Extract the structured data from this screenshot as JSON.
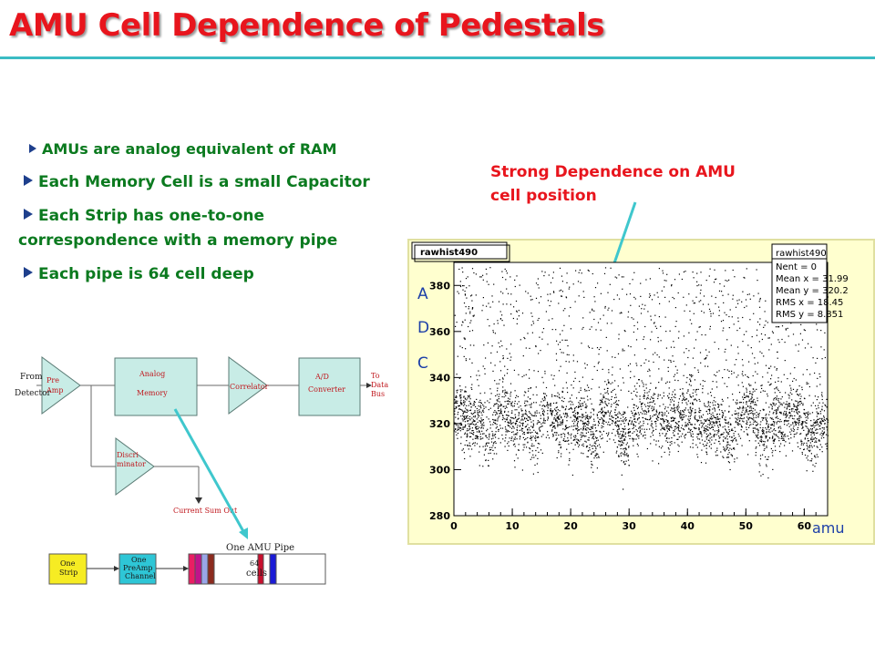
{
  "title": "AMU Cell Dependence of Pedestals",
  "bullets": [
    "AMUs are analog equivalent of RAM",
    "Each Memory Cell is a small Capacitor",
    "Each Strip has one-to-one",
    "correspondence with a memory pipe",
    "Each pipe is 64 cell deep"
  ],
  "annotation": {
    "line1": "Strong Dependence on AMU",
    "line2": "cell position"
  },
  "diagram": {
    "from_detector": [
      "From",
      "Detector"
    ],
    "preamp": [
      "Pre",
      "Amp"
    ],
    "analog_memory": [
      "Analog",
      "Memory"
    ],
    "correlator": "Correlator",
    "adc": [
      "A/D",
      "Converter"
    ],
    "to_data_bus": [
      "To",
      "Data",
      "Bus"
    ],
    "discriminator": [
      "Discri",
      "minator"
    ],
    "current_sum_out": "Current Sum Out",
    "one_amu_pipe": "One AMU Pipe",
    "one_strip": [
      "One",
      "Strip"
    ],
    "one_preamp_channel": [
      "One",
      "PreAmp",
      "Channel"
    ],
    "cells": [
      "64",
      "cells"
    ],
    "pipe_colors": [
      "#e91e63",
      "#c0138a",
      "#9aa6e8",
      "#8c2b1e",
      "#e6b3c7",
      "#c8102e",
      "#ffffff",
      "#1b1bd6"
    ]
  },
  "chart_data": {
    "type": "scatter",
    "title": "rawhist490",
    "stats": {
      "name": "rawhist490",
      "lines": [
        "Nent = 0",
        "Mean x = 31.99",
        "Mean y = 320.2",
        "RMS x = 18.45",
        "RMS y = 8.851"
      ]
    },
    "xlabel": "amu",
    "ylabel": [
      "A",
      "D",
      "C"
    ],
    "xlim": [
      0,
      64
    ],
    "ylim": [
      280,
      390
    ],
    "xticks": [
      "0",
      "10",
      "20",
      "30",
      "40",
      "50",
      "60"
    ],
    "yticks": [
      "280",
      "300",
      "320",
      "340",
      "360",
      "380"
    ],
    "band_center": 320,
    "band_rms": 8.851,
    "peaks_x": [
      1,
      8,
      16,
      26,
      33,
      40,
      50,
      58
    ],
    "dips_x": [
      6,
      14,
      24,
      29,
      47,
      53,
      61
    ]
  },
  "colors": {
    "title": "#e8151d",
    "bullets": "#0b7a1f",
    "annotation": "#e8151d",
    "accent": "#3bbcc4",
    "axis_letters": "#1c3fa8"
  }
}
